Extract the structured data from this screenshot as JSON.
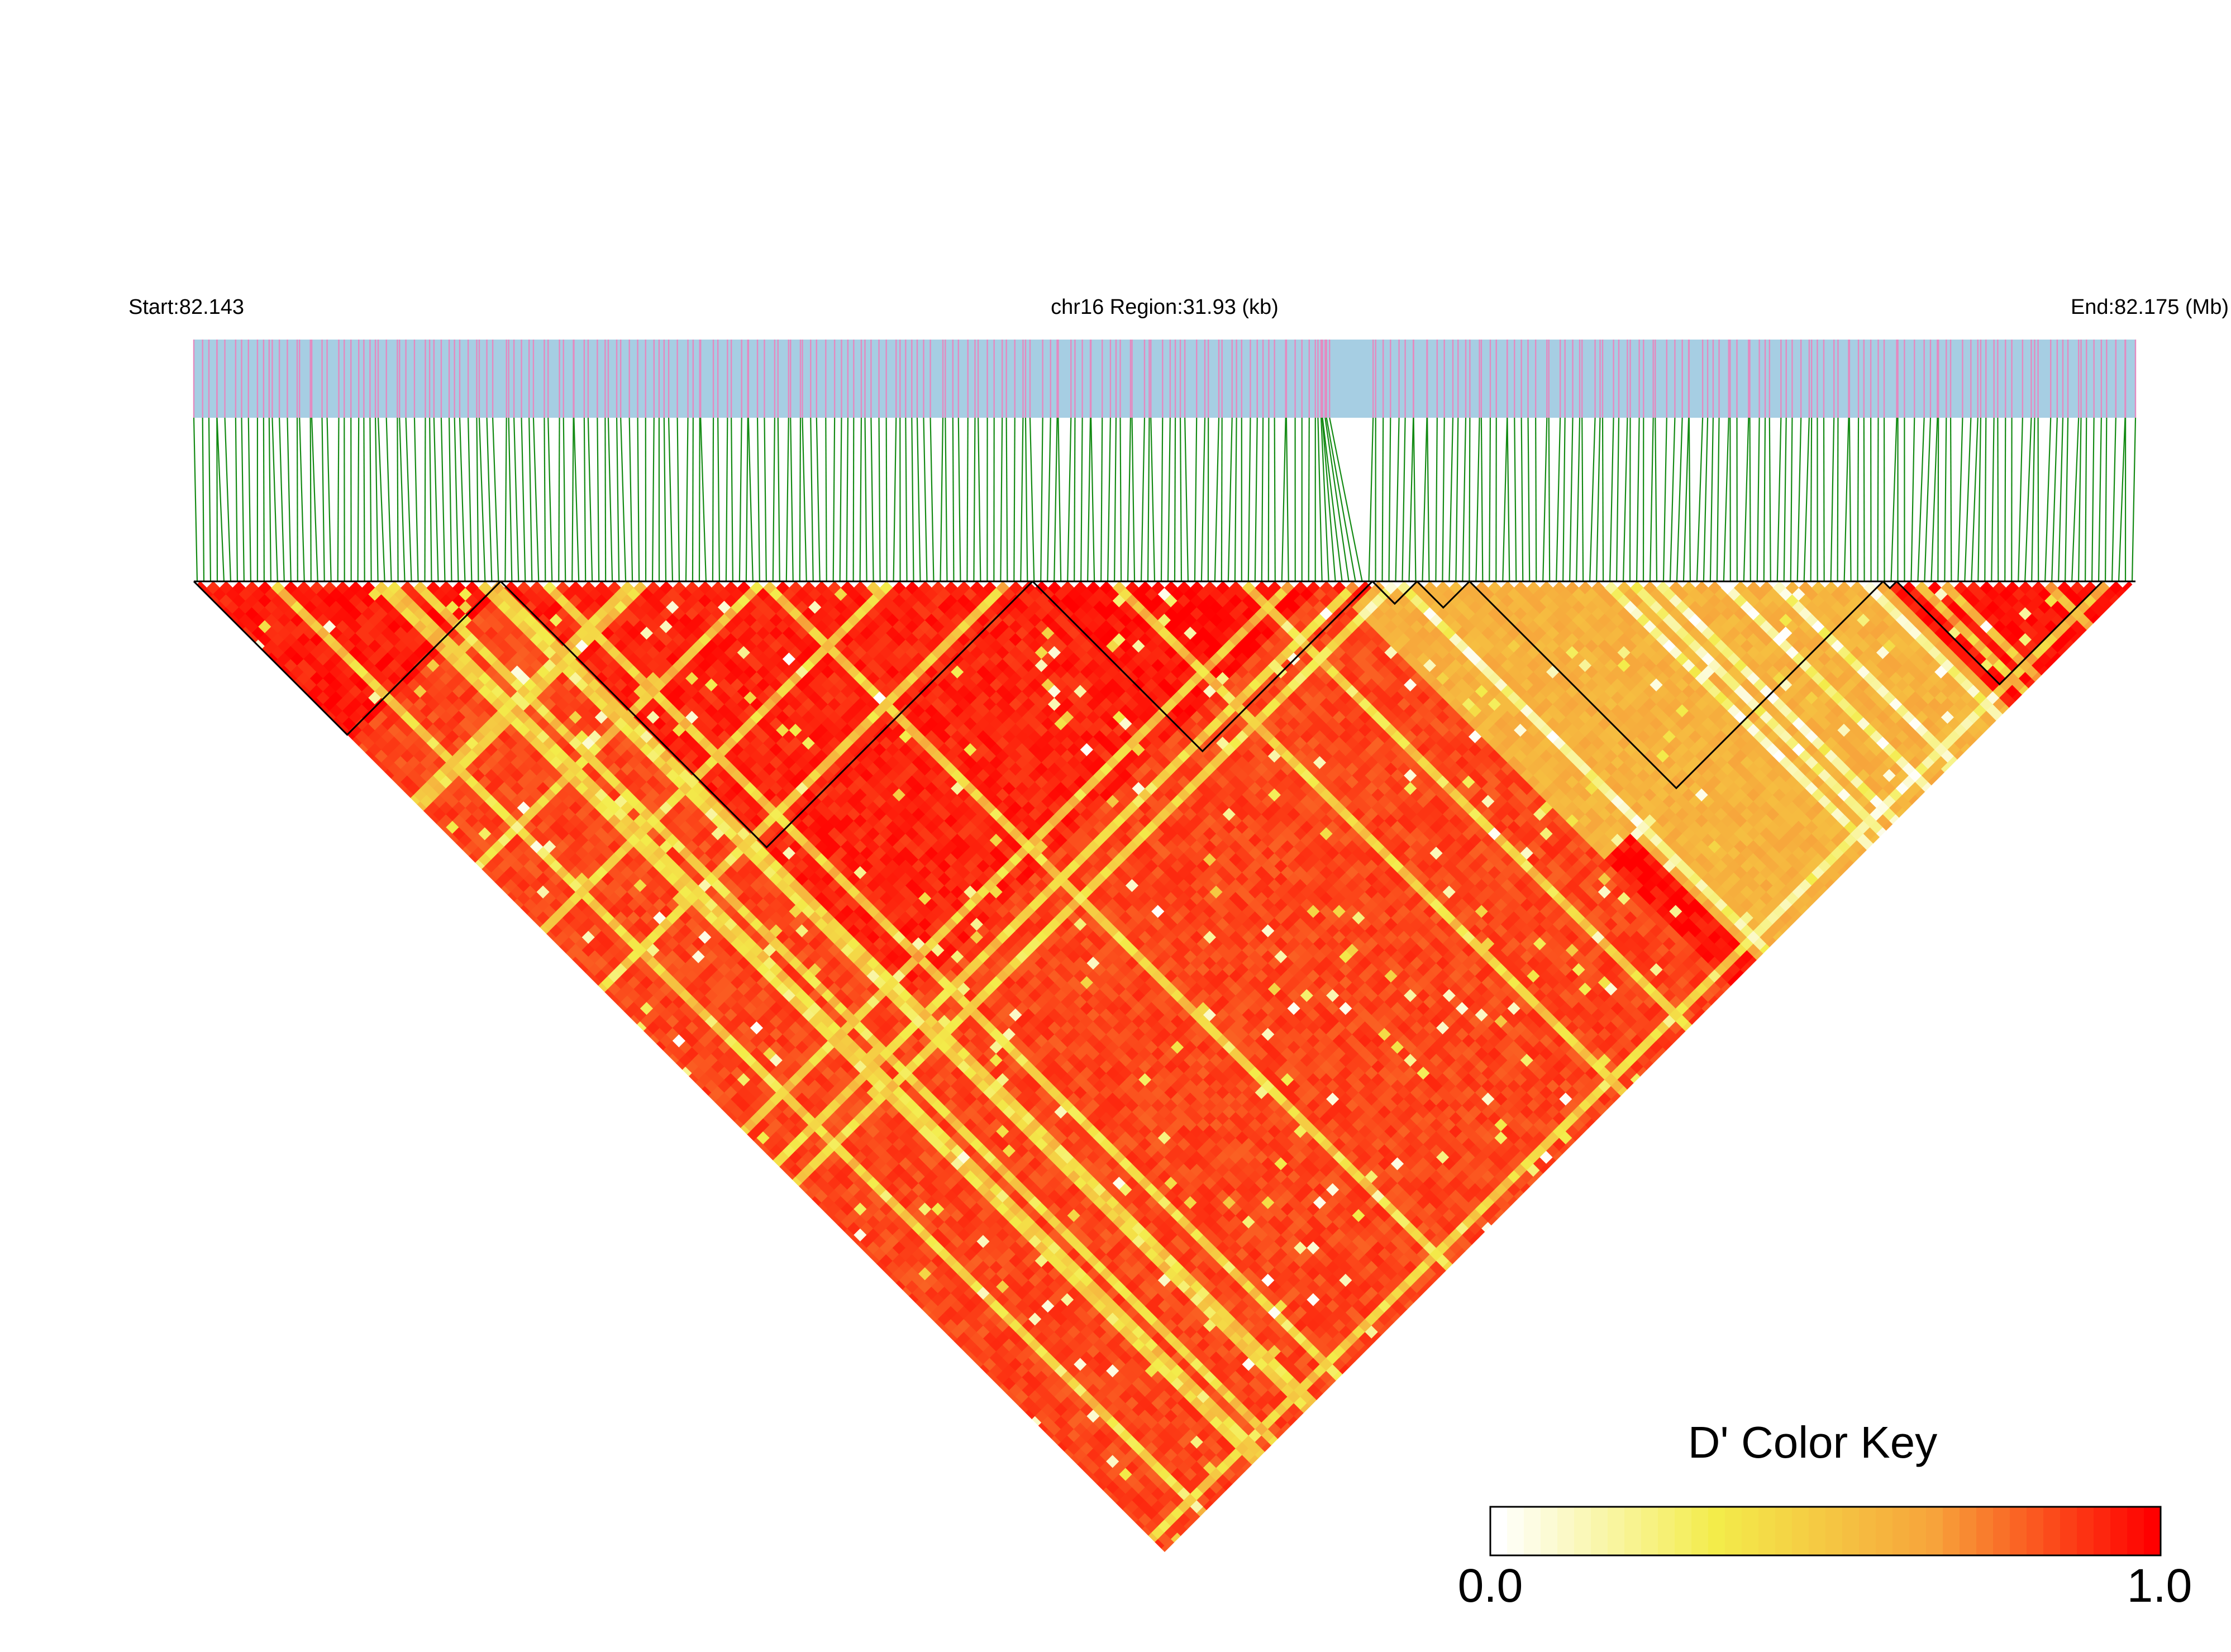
{
  "header": {
    "start_label": "Start:82.143",
    "region_label": "chr16 Region:31.93 (kb)",
    "end_label": "End:82.175 (Mb)"
  },
  "chart_data": {
    "type": "heatmap",
    "subtype": "linkage-disequilibrium-triangle",
    "chromosome": "chr16",
    "region_start_mb": 82.143,
    "region_end_mb": 82.175,
    "region_size_kb": 31.93,
    "n_snps_approx": 290,
    "snp_track_colors": {
      "background": "#a6cee3",
      "snp_tick": "#e48ac0",
      "connector": "#138a13"
    },
    "color_key": {
      "title": "D' Color Key",
      "min_label": "0.0",
      "max_label": "1.0",
      "range": [
        0.0,
        1.0
      ],
      "colors": [
        "#ffffff",
        "#f3ec4a",
        "#f7a33b",
        "#ff0000"
      ]
    },
    "ld_blocks_fraction": [
      [
        0.0,
        0.158
      ],
      [
        0.158,
        0.583
      ],
      [
        0.583,
        1.0
      ]
    ],
    "sub_blocks_fraction": [
      [
        0.0,
        0.158
      ],
      [
        0.158,
        0.432
      ],
      [
        0.432,
        0.607
      ],
      [
        0.607,
        0.63
      ],
      [
        0.63,
        0.657
      ],
      [
        0.657,
        0.87
      ],
      [
        0.87,
        0.877
      ],
      [
        0.877,
        0.983
      ]
    ],
    "dprime_regions": [
      {
        "segment_fraction": [
          0.0,
          0.158
        ],
        "mean_dprime": 0.95
      },
      {
        "segment_fraction": [
          0.158,
          0.432
        ],
        "mean_dprime": 0.93
      },
      {
        "segment_fraction": [
          0.432,
          0.607
        ],
        "mean_dprime": 0.97
      },
      {
        "segment_fraction": [
          0.607,
          0.87
        ],
        "mean_dprime": 0.6
      },
      {
        "segment_fraction": [
          0.87,
          1.0
        ],
        "mean_dprime": 0.97
      }
    ]
  }
}
